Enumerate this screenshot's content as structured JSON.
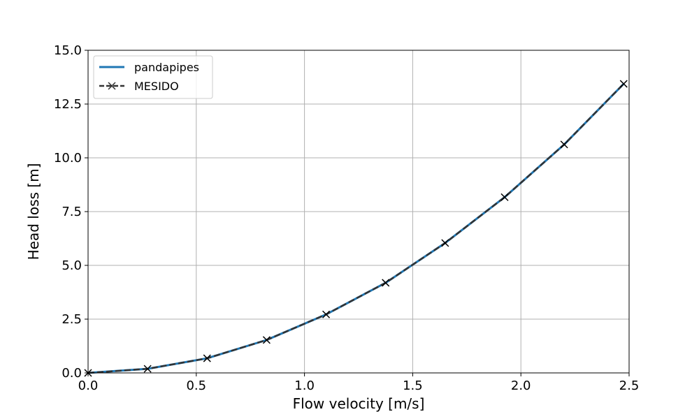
{
  "chart_data": {
    "type": "line",
    "xlabel": "Flow velocity [m/s]",
    "ylabel": "Head loss [m]",
    "xlim": [
      0.0,
      2.5
    ],
    "ylim": [
      0.0,
      15.0
    ],
    "xticks": [
      "0.0",
      "0.5",
      "1.0",
      "1.5",
      "2.0",
      "2.5"
    ],
    "yticks": [
      "0.0",
      "2.5",
      "5.0",
      "7.5",
      "10.0",
      "12.5",
      "15.0"
    ],
    "grid": true,
    "legend_position": "top-left",
    "series": [
      {
        "name": "pandapipes",
        "style": "solid",
        "color": "#1f77b4",
        "x": [
          0.0,
          0.275,
          0.55,
          0.825,
          1.1,
          1.375,
          1.65,
          1.925,
          2.2,
          2.475
        ],
        "y": [
          0.0,
          0.19,
          0.68,
          1.53,
          2.72,
          4.19,
          6.04,
          8.17,
          10.62,
          13.44
        ]
      },
      {
        "name": "MESIDO",
        "style": "dashed",
        "marker": "x",
        "color": "#333333",
        "x": [
          0.0,
          0.275,
          0.55,
          0.825,
          1.1,
          1.375,
          1.65,
          1.925,
          2.2,
          2.475
        ],
        "y": [
          0.0,
          0.19,
          0.68,
          1.53,
          2.72,
          4.19,
          6.04,
          8.17,
          10.62,
          13.44
        ]
      }
    ]
  }
}
